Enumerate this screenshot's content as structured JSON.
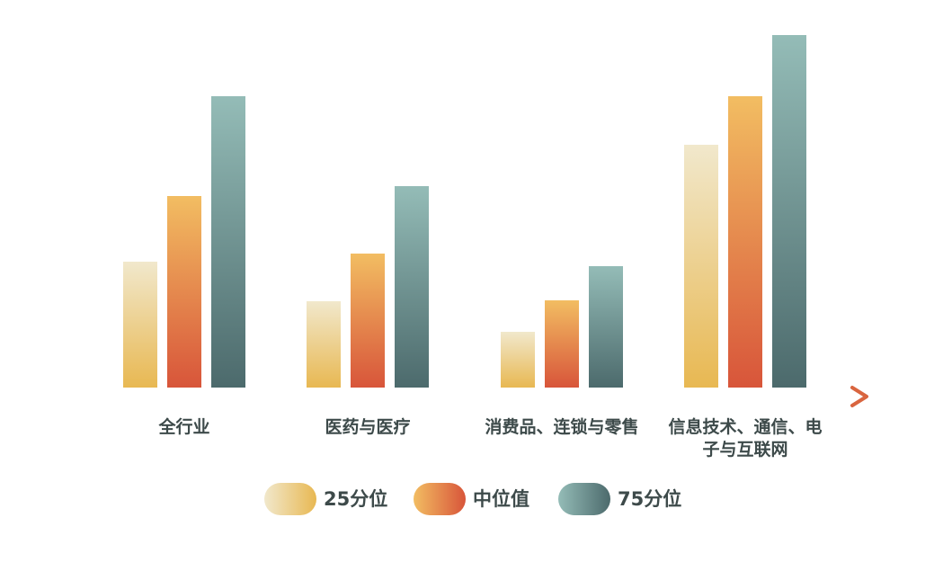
{
  "chart_data": {
    "type": "bar",
    "categories": [
      "全行业",
      "医药与医疗",
      "消费品、连锁与零售",
      "信息技术、通信、电子与互联网"
    ],
    "series": [
      {
        "name": "25分位",
        "color": "#e8bb5c",
        "gradient": [
          "#f1e8cc",
          "#e8b852"
        ],
        "values": [
          140,
          96,
          62,
          270
        ]
      },
      {
        "name": "中位值",
        "color": "#e07a44",
        "gradient": [
          "#f2bd62",
          "#d8553a"
        ],
        "values": [
          213,
          149,
          97,
          324
        ]
      },
      {
        "name": "75分位",
        "color": "#5f8584",
        "gradient": [
          "#94bcb7",
          "#4c6a6c"
        ],
        "values": [
          324,
          224,
          135,
          392
        ]
      }
    ],
    "ylim": [
      0,
      400
    ]
  }
}
